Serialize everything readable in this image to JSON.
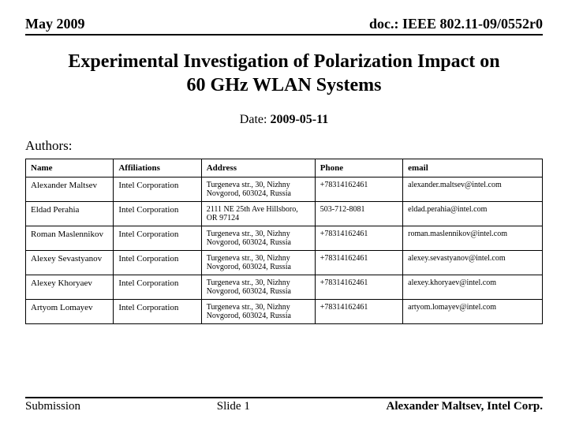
{
  "header": {
    "left": "May 2009",
    "right": "doc.: IEEE 802.11-09/0552r0"
  },
  "title": "Experimental Investigation of Polarization Impact on 60 GHz WLAN Systems",
  "date_label": "Date: ",
  "date_value": "2009-05-11",
  "authors_label": "Authors:",
  "table": {
    "columns": [
      "Name",
      "Affiliations",
      "Address",
      "Phone",
      "email"
    ],
    "rows": [
      {
        "name": "Alexander Maltsev",
        "affil": "Intel Corporation",
        "address": "Turgeneva str., 30, Nizhny Novgorod, 603024, Russia",
        "phone": "+78314162461",
        "email": "alexander.maltsev@intel.com"
      },
      {
        "name": "Eldad Perahia",
        "affil": "Intel Corporation",
        "address": "2111 NE 25th Ave Hillsboro, OR 97124",
        "phone": "503-712-8081",
        "email": "eldad.perahia@intel.com"
      },
      {
        "name": "Roman Maslennikov",
        "affil": "Intel Corporation",
        "address": "Turgeneva str., 30, Nizhny Novgorod, 603024, Russia",
        "phone": "+78314162461",
        "email": "roman.maslennikov@intel.com"
      },
      {
        "name": "Alexey Sevastyanov",
        "affil": "Intel Corporation",
        "address": "Turgeneva str., 30, Nizhny Novgorod, 603024, Russia",
        "phone": "+78314162461",
        "email": "alexey.sevastyanov@intel.com"
      },
      {
        "name": "Alexey Khoryaev",
        "affil": "Intel Corporation",
        "address": "Turgeneva str., 30, Nizhny Novgorod, 603024, Russia",
        "phone": "+78314162461",
        "email": "alexey.khoryaev@intel.com"
      },
      {
        "name": "Artyom Lomayev",
        "affil": "Intel Corporation",
        "address": "Turgeneva str., 30, Nizhny Novgorod, 603024, Russia",
        "phone": "+78314162461",
        "email": "artyom.lomayev@intel.com"
      }
    ]
  },
  "footer": {
    "left": "Submission",
    "center": "Slide 1",
    "right": "Alexander Maltsev, Intel Corp."
  }
}
